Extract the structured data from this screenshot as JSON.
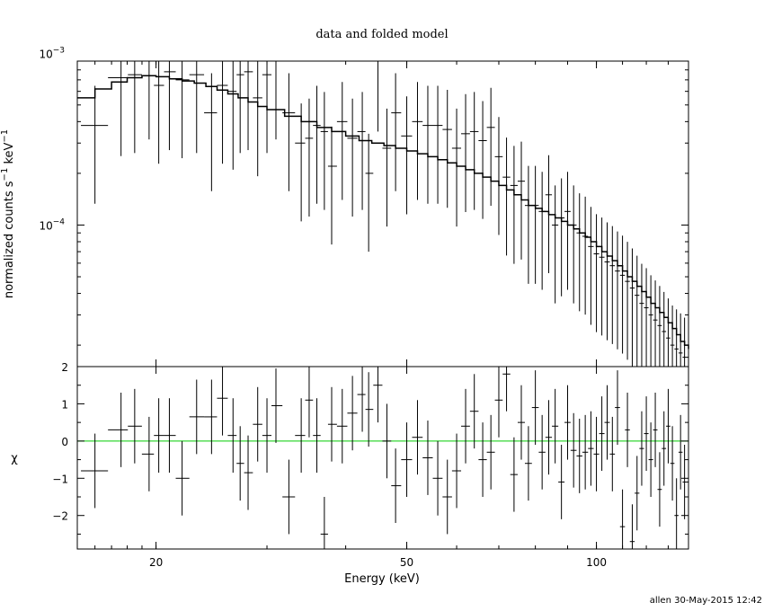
{
  "chart_data": {
    "type": "scatter",
    "title": "data and folded model",
    "xlabel": "Energy (keV)",
    "x_scale": "log",
    "xlim": [
      15,
      140
    ],
    "xticks": [
      {
        "v": 20,
        "label": "20"
      },
      {
        "v": 50,
        "label": "50"
      },
      {
        "v": 100,
        "label": "100"
      }
    ],
    "top_panel": {
      "ylabel_parts": {
        "a": "normalized counts s",
        "b": "−1",
        "c": " keV",
        "d": "−1"
      },
      "y_scale": "log",
      "ylim": [
        1.5e-05,
        0.0009
      ],
      "yticks": [
        {
          "v": 0.001,
          "base": "10",
          "exp": "−3"
        },
        {
          "v": 0.0001,
          "base": "10",
          "exp": "−4"
        }
      ],
      "series": [
        {
          "kind": "data",
          "x": [
            16.0,
            17.6,
            18.5,
            19.5,
            20.2,
            21.0,
            22.0,
            23.2,
            24.5,
            25.5,
            26.5,
            27.2,
            28.0,
            29.0,
            30.0,
            31.0,
            32.5,
            34.0,
            35.0,
            36.0,
            37.0,
            38.0,
            39.5,
            41.0,
            42.5,
            43.5,
            45.0,
            46.5,
            48.0,
            50.0,
            52.0,
            54.0,
            56.0,
            58.0,
            60.0,
            62.0,
            64.0,
            66.0,
            68.0,
            70.0,
            72.0,
            74.0,
            76.0,
            78.0,
            80.0,
            82.0,
            84.0,
            86.0,
            88.0,
            90.0,
            92.0,
            94.0,
            96.0,
            98.0,
            100.0,
            102.0,
            104.0,
            106.0,
            108.0,
            110.0,
            112.0,
            114.0,
            116.0,
            118.0,
            120.0,
            122.0,
            124.0,
            126.0,
            128.0,
            130.0,
            132.0,
            134.0,
            136.0,
            138.0
          ],
          "y": [
            0.00038,
            0.00072,
            0.00075,
            0.0009,
            0.00065,
            0.00078,
            0.0007,
            0.00075,
            0.00045,
            0.00065,
            0.0006,
            0.00075,
            0.00078,
            0.00055,
            0.00075,
            0.0009,
            0.00045,
            0.0003,
            0.00032,
            0.00038,
            0.00035,
            0.00022,
            0.0004,
            0.00032,
            0.00035,
            0.0002,
            0.001,
            0.00028,
            0.00045,
            0.00033,
            0.0004,
            0.00038,
            0.00038,
            0.00036,
            0.00028,
            0.00034,
            0.00035,
            0.00031,
            0.00037,
            0.00025,
            0.00019,
            0.00017,
            0.00018,
            0.00013,
            0.00013,
            0.00012,
            0.00015,
            0.0001,
            0.00011,
            0.00012,
            0.0001,
            9e-05,
            8.6e-05,
            7.5e-05,
            6.8e-05,
            6.5e-05,
            6.1e-05,
            5.8e-05,
            5.4e-05,
            5.1e-05,
            4.7e-05,
            4.3e-05,
            3.9e-05,
            3.5e-05,
            3.3e-05,
            3e-05,
            2.8e-05,
            2.6e-05,
            2.4e-05,
            2.2e-05,
            2e-05,
            1.9e-05,
            1.8e-05,
            1.7e-05
          ]
        },
        {
          "kind": "model",
          "x": [
            15.0,
            16.0,
            17.0,
            18.0,
            19.0,
            20.0,
            21.0,
            22.0,
            23.0,
            24.0,
            25.0,
            26.0,
            27.0,
            28.0,
            29.0,
            30.0,
            32.0,
            34.0,
            36.0,
            38.0,
            40.0,
            42.0,
            44.0,
            46.0,
            48.0,
            50.0,
            52.0,
            54.0,
            56.0,
            58.0,
            60.0,
            62.0,
            64.0,
            66.0,
            68.0,
            70.0,
            72.0,
            74.0,
            76.0,
            78.0,
            80.0,
            82.0,
            84.0,
            86.0,
            88.0,
            90.0,
            92.0,
            94.0,
            96.0,
            98.0,
            100.0,
            102.0,
            104.0,
            106.0,
            108.0,
            110.0,
            112.0,
            114.0,
            116.0,
            118.0,
            120.0,
            122.0,
            124.0,
            126.0,
            128.0,
            130.0,
            132.0,
            134.0,
            136.0,
            138.0,
            140.0
          ],
          "y": [
            0.00055,
            0.00062,
            0.00068,
            0.00072,
            0.00074,
            0.00073,
            0.00071,
            0.00069,
            0.00067,
            0.00064,
            0.00061,
            0.00058,
            0.00055,
            0.00052,
            0.00049,
            0.00047,
            0.00043,
            0.0004,
            0.00037,
            0.00035,
            0.00033,
            0.00031,
            0.0003,
            0.00029,
            0.00028,
            0.00027,
            0.00026,
            0.00025,
            0.00024,
            0.00023,
            0.00022,
            0.00021,
            0.0002,
            0.00019,
            0.00018,
            0.00017,
            0.00016,
            0.00015,
            0.00014,
            0.00013,
            0.000125,
            0.00012,
            0.000115,
            0.00011,
            0.000105,
            0.0001,
            9.5e-05,
            9e-05,
            8.5e-05,
            8e-05,
            7.5e-05,
            7e-05,
            6.6e-05,
            6.2e-05,
            5.8e-05,
            5.4e-05,
            5e-05,
            4.7e-05,
            4.4e-05,
            4.1e-05,
            3.8e-05,
            3.5e-05,
            3.3e-05,
            3.1e-05,
            2.9e-05,
            2.7e-05,
            2.5e-05,
            2.3e-05,
            2.1e-05,
            2e-05,
            1.9e-05
          ]
        }
      ]
    },
    "bottom_panel": {
      "ylabel": "χ",
      "ylim": [
        -2.9,
        2.0
      ],
      "yticks": [
        {
          "v": 2,
          "label": "2"
        },
        {
          "v": 1,
          "label": "1"
        },
        {
          "v": 0,
          "label": "0"
        },
        {
          "v": -1,
          "label": "−1"
        },
        {
          "v": -2,
          "label": "−2"
        }
      ],
      "zero_line_color": "#00cc00",
      "series": [
        {
          "kind": "residuals",
          "x": [
            16.0,
            17.6,
            18.5,
            19.5,
            20.2,
            21.0,
            22.0,
            23.2,
            24.5,
            25.5,
            26.5,
            27.2,
            28.0,
            29.0,
            30.0,
            31.0,
            32.5,
            34.0,
            35.0,
            36.0,
            37.0,
            38.0,
            39.5,
            41.0,
            42.5,
            43.5,
            45.0,
            46.5,
            48.0,
            50.0,
            52.0,
            54.0,
            56.0,
            58.0,
            60.0,
            62.0,
            64.0,
            66.0,
            68.0,
            70.0,
            72.0,
            74.0,
            76.0,
            78.0,
            80.0,
            82.0,
            84.0,
            86.0,
            88.0,
            90.0,
            92.0,
            94.0,
            96.0,
            98.0,
            100.0,
            102.0,
            104.0,
            106.0,
            108.0,
            110.0,
            112.0,
            114.0,
            116.0,
            118.0,
            120.0,
            122.0,
            124.0,
            126.0,
            128.0,
            130.0,
            132.0,
            134.0,
            136.0,
            138.0
          ],
          "y": [
            -0.8,
            0.3,
            0.4,
            -0.35,
            0.15,
            0.15,
            -1.0,
            0.65,
            0.65,
            1.15,
            0.15,
            -0.6,
            -0.85,
            0.45,
            0.15,
            0.95,
            -1.5,
            0.15,
            1.1,
            0.15,
            -2.5,
            0.45,
            0.4,
            0.75,
            1.25,
            0.85,
            1.5,
            0.0,
            -1.2,
            -0.5,
            0.1,
            -0.45,
            -1.0,
            -1.5,
            -0.8,
            0.4,
            0.8,
            -0.5,
            -0.3,
            1.1,
            1.8,
            -0.9,
            0.5,
            -0.6,
            0.9,
            -0.3,
            0.1,
            0.4,
            -1.1,
            0.5,
            -0.25,
            -0.4,
            -0.3,
            -0.2,
            -0.35,
            0.2,
            0.5,
            -0.35,
            0.9,
            -2.3,
            0.3,
            -2.7,
            -1.4,
            -0.2,
            0.2,
            -0.5,
            0.3,
            -1.3,
            -0.2,
            0.4,
            -0.6,
            -2.0,
            -0.3,
            -1.1
          ]
        }
      ]
    }
  },
  "footer": "allen 30-May-2015 12:42"
}
